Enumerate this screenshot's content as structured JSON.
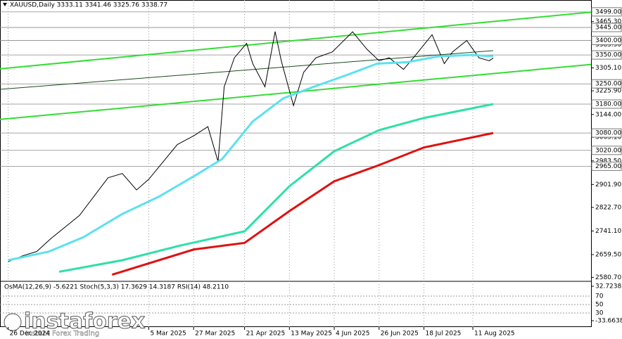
{
  "header": "XAUUSD,Daily  3333.11 3341.46 3325.76 3338.77",
  "watermark": {
    "brand": "instaforex",
    "slogan": "Instant Forex Trading"
  },
  "chart_data": {
    "type": "line",
    "xlim": [
      "2024-12-22",
      "2025-10-08"
    ],
    "ylim": [
      2567,
      3540
    ],
    "xticks": [
      {
        "value": "2024-12-26",
        "label": "26 Dec 2024"
      },
      {
        "value": "2025-03-05",
        "label": "5 Mar 2025"
      },
      {
        "value": "2025-03-27",
        "label": "27 Mar 2025"
      },
      {
        "value": "2025-04-21",
        "label": "21 Apr 2025"
      },
      {
        "value": "2025-05-13",
        "label": "13 May 2025"
      },
      {
        "value": "2025-06-04",
        "label": "4 Jun 2025"
      },
      {
        "value": "2025-06-26",
        "label": "26 Jun 2025"
      },
      {
        "value": "2025-07-18",
        "label": "18 Jul 2025"
      },
      {
        "value": "2025-08-11",
        "label": "11 Aug 2025"
      }
    ],
    "yticks": [
      {
        "value": 3465.3,
        "label": "3465.30"
      },
      {
        "value": 3385.5,
        "label": "3385.50"
      },
      {
        "value": 3305.1,
        "label": "3305.10"
      },
      {
        "value": 3225.9,
        "label": "3225.90"
      },
      {
        "value": 3144.0,
        "label": "3144.00"
      },
      {
        "value": 3065.1,
        "label": "3065.10"
      },
      {
        "value": 2983.5,
        "label": "2983.50"
      },
      {
        "value": 2901.9,
        "label": "2901.90"
      },
      {
        "value": 2822.7,
        "label": "2822.70"
      },
      {
        "value": 2741.1,
        "label": "2741.10"
      },
      {
        "value": 2659.5,
        "label": "2659.50"
      },
      {
        "value": 2580.7,
        "label": "2580.70"
      }
    ],
    "levels": [
      {
        "value": 3499,
        "label": "3499.00"
      },
      {
        "value": 3445,
        "label": "3445.00"
      },
      {
        "value": 3400,
        "label": "3400.00"
      },
      {
        "value": 3350,
        "label": "3350.00"
      },
      {
        "value": 3250,
        "label": "3250.00"
      },
      {
        "value": 3180,
        "label": "3180.00"
      },
      {
        "value": 3080,
        "label": "3080.00"
      },
      {
        "value": 3020,
        "label": "3020.00"
      },
      {
        "value": 2965,
        "label": "2965.00"
      }
    ],
    "series": [
      {
        "color": "#000000",
        "x": [
          "2024-12-26",
          "2025-01-02",
          "2025-01-09",
          "2025-01-16",
          "2025-01-23",
          "2025-01-30",
          "2025-02-06",
          "2025-02-13",
          "2025-02-20",
          "2025-02-27",
          "2025-03-05",
          "2025-03-12",
          "2025-03-19",
          "2025-03-27",
          "2025-04-03",
          "2025-04-08",
          "2025-04-11",
          "2025-04-16",
          "2025-04-22",
          "2025-04-25",
          "2025-05-01",
          "2025-05-06",
          "2025-05-09",
          "2025-05-15",
          "2025-05-20",
          "2025-05-26",
          "2025-06-03",
          "2025-06-13",
          "2025-06-20",
          "2025-06-26",
          "2025-07-01",
          "2025-07-08",
          "2025-07-14",
          "2025-07-22",
          "2025-07-28",
          "2025-08-01",
          "2025-08-08",
          "2025-08-14",
          "2025-08-19",
          "2025-08-21"
        ],
        "values": [
          2635,
          2655,
          2670,
          2715,
          2755,
          2795,
          2860,
          2925,
          2940,
          2883,
          2920,
          2980,
          3040,
          3070,
          3102,
          2981,
          3240,
          3340,
          3390,
          3320,
          3240,
          3431,
          3330,
          3175,
          3290,
          3340,
          3360,
          3430,
          3370,
          3330,
          3340,
          3300,
          3350,
          3420,
          3320,
          3360,
          3400,
          3340,
          3330,
          3338.77
        ]
      },
      {
        "color": "#5ce1f0",
        "x": [
          "2024-12-26",
          "2025-01-15",
          "2025-02-01",
          "2025-02-20",
          "2025-03-10",
          "2025-03-27",
          "2025-04-10",
          "2025-04-25",
          "2025-05-10",
          "2025-05-25",
          "2025-06-10",
          "2025-06-25",
          "2025-07-10",
          "2025-07-25",
          "2025-08-10",
          "2025-08-21"
        ],
        "values": [
          2640,
          2670,
          2720,
          2800,
          2860,
          2930,
          2990,
          3120,
          3200,
          3240,
          3280,
          3320,
          3325,
          3345,
          3350,
          3345
        ]
      },
      {
        "color": "#2ee0a8",
        "x": [
          "2025-01-20",
          "2025-02-20",
          "2025-03-20",
          "2025-04-21",
          "2025-05-13",
          "2025-06-04",
          "2025-06-26",
          "2025-07-18",
          "2025-08-21"
        ],
        "values": [
          2600,
          2640,
          2690,
          2740,
          2896,
          3017,
          3090,
          3132,
          3180
        ]
      },
      {
        "color": "#e01010",
        "x": [
          "2025-02-15",
          "2025-03-27",
          "2025-04-21",
          "2025-05-13",
          "2025-06-04",
          "2025-06-26",
          "2025-07-18",
          "2025-08-21"
        ],
        "values": [
          2590,
          2677,
          2700,
          2810,
          2913,
          2969,
          3030,
          3080
        ]
      }
    ],
    "trendlines": [
      {
        "color": "#33dd33",
        "x": [
          "2024-12-22",
          "2025-10-08"
        ],
        "values": [
          3302,
          3498
        ]
      },
      {
        "color": "#33dd33",
        "x": [
          "2024-12-22",
          "2025-10-08"
        ],
        "values": [
          3127,
          3317
        ]
      },
      {
        "color": "#1a4a1a",
        "x": [
          "2024-12-22",
          "2025-08-21"
        ],
        "values": [
          3231,
          3365
        ]
      }
    ],
    "indicator": {
      "title": "OsMA(12,26,9) -5.6221 Stoch(5,3,3) 17.3629 14.3187 RSI(14) 48.2110",
      "ylim": [
        -45.9,
        42.2
      ],
      "yticks": [
        {
          "value": 32.7238,
          "label": "32.7238"
        },
        {
          "value": -33.6638,
          "label": "-33.6638"
        }
      ],
      "rsi_ylim": [
        -3.3,
        105
      ],
      "rsi_yticks": [
        70,
        50,
        30
      ]
    }
  }
}
